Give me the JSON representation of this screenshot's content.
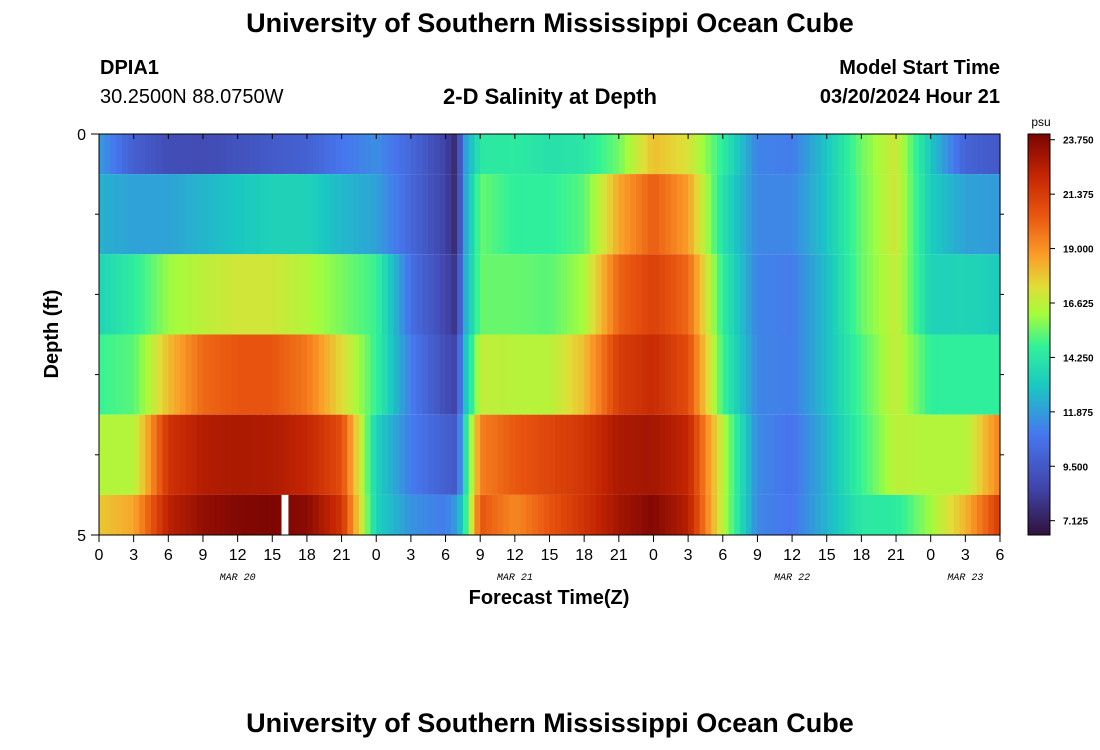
{
  "header": {
    "title": "University of Southern Mississippi Ocean Cube",
    "station_id": "DPIA1",
    "coordinates": "30.2500N  88.0750W",
    "chart_title": "2-D Salinity at Depth",
    "model_start_label": "Model Start Time",
    "model_start_value": "03/20/2024 Hour 21"
  },
  "footer": {
    "title": "University of Southern Mississippi Ocean Cube"
  },
  "chart_data": {
    "type": "heatmap",
    "title": "2-D Salinity at Depth",
    "xlabel": "Forecast Time(Z)",
    "ylabel": "Depth (ft)",
    "unit": "psu",
    "x_range_hours": [
      0,
      78
    ],
    "x_origin": "03/20/2024 00Z",
    "x_ticks": [
      {
        "hour": 0,
        "label": "0"
      },
      {
        "hour": 3,
        "label": "3"
      },
      {
        "hour": 6,
        "label": "6"
      },
      {
        "hour": 9,
        "label": "9"
      },
      {
        "hour": 12,
        "label": "12"
      },
      {
        "hour": 15,
        "label": "15"
      },
      {
        "hour": 18,
        "label": "18"
      },
      {
        "hour": 21,
        "label": "21"
      },
      {
        "hour": 24,
        "label": "0"
      },
      {
        "hour": 27,
        "label": "3"
      },
      {
        "hour": 30,
        "label": "6"
      },
      {
        "hour": 33,
        "label": "9"
      },
      {
        "hour": 36,
        "label": "12"
      },
      {
        "hour": 39,
        "label": "15"
      },
      {
        "hour": 42,
        "label": "18"
      },
      {
        "hour": 45,
        "label": "21"
      },
      {
        "hour": 48,
        "label": "0"
      },
      {
        "hour": 51,
        "label": "3"
      },
      {
        "hour": 54,
        "label": "6"
      },
      {
        "hour": 57,
        "label": "9"
      },
      {
        "hour": 60,
        "label": "12"
      },
      {
        "hour": 63,
        "label": "15"
      },
      {
        "hour": 66,
        "label": "18"
      },
      {
        "hour": 69,
        "label": "21"
      },
      {
        "hour": 72,
        "label": "0"
      },
      {
        "hour": 75,
        "label": "3"
      },
      {
        "hour": 78,
        "label": "6"
      }
    ],
    "date_labels": [
      {
        "hour": 12,
        "label": "MAR 20"
      },
      {
        "hour": 36,
        "label": "MAR 21"
      },
      {
        "hour": 60,
        "label": "MAR 22"
      },
      {
        "hour": 75,
        "label": "MAR 23"
      }
    ],
    "y_range_ft": [
      0,
      5
    ],
    "y_ticks": [
      {
        "ft": 0,
        "label": "0"
      },
      {
        "ft": 5,
        "label": "5"
      }
    ],
    "y_minor_ticks": [
      1,
      2,
      3,
      4
    ],
    "depth_layers_ft": [
      [
        0,
        0.5
      ],
      [
        0.5,
        1.5
      ],
      [
        1.5,
        2.5
      ],
      [
        2.5,
        3.5
      ],
      [
        3.5,
        4.5
      ],
      [
        4.5,
        5.0
      ]
    ],
    "key_hours": [
      0,
      3,
      6,
      9,
      12,
      15,
      18,
      21,
      24,
      27,
      30,
      31,
      31.5,
      33,
      36,
      39,
      42,
      45,
      48,
      51,
      54,
      57,
      60,
      63,
      66,
      69,
      72,
      75,
      78
    ],
    "salinity_psu": [
      [
        11.8,
        9.8,
        9.0,
        8.9,
        9.2,
        9.6,
        9.9,
        10.8,
        11.5,
        10.2,
        8.5,
        7.3,
        11.5,
        14.3,
        14.4,
        14.0,
        14.2,
        15.5,
        18.0,
        17.2,
        14.5,
        11.2,
        11.0,
        13.0,
        15.5,
        17.0,
        13.0,
        10.0,
        9.5
      ],
      [
        12.4,
        12.0,
        12.0,
        12.5,
        13.0,
        13.4,
        13.4,
        12.6,
        12.0,
        10.2,
        8.5,
        7.3,
        11.5,
        15.4,
        14.6,
        14.6,
        15.2,
        18.5,
        20.3,
        18.7,
        14.0,
        11.3,
        11.3,
        13.0,
        15.4,
        17.0,
        13.2,
        12.0,
        11.8
      ],
      [
        13.5,
        14.5,
        16.0,
        16.6,
        17.0,
        17.0,
        16.4,
        15.6,
        14.8,
        10.5,
        8.7,
        7.8,
        11.8,
        15.4,
        15.4,
        15.2,
        16.2,
        20.1,
        21.2,
        20.0,
        14.5,
        11.2,
        11.0,
        12.8,
        15.4,
        16.8,
        13.4,
        13.5,
        13.2
      ],
      [
        14.8,
        15.2,
        18.0,
        20.0,
        20.5,
        20.5,
        19.6,
        17.4,
        14.7,
        11.0,
        9.0,
        8.5,
        12.3,
        16.7,
        16.5,
        16.5,
        18.0,
        21.3,
        22.0,
        20.8,
        14.8,
        11.3,
        11.0,
        12.8,
        15.0,
        16.8,
        14.6,
        14.6,
        14.6
      ],
      [
        16.4,
        16.4,
        21.7,
        22.6,
        22.8,
        22.7,
        22.2,
        20.8,
        13.4,
        11.0,
        9.8,
        9.5,
        13.0,
        19.4,
        20.4,
        21.0,
        21.6,
        22.8,
        23.0,
        22.2,
        16.5,
        11.4,
        10.7,
        12.5,
        14.8,
        16.6,
        16.4,
        16.4,
        19.4
      ],
      [
        17.8,
        18.5,
        22.4,
        23.4,
        23.8,
        23.9,
        23.6,
        21.7,
        13.4,
        11.6,
        11.0,
        12.0,
        13.5,
        20.5,
        19.2,
        20.5,
        21.7,
        23.0,
        23.8,
        22.5,
        16.5,
        11.3,
        10.8,
        12.5,
        14.3,
        14.4,
        16.1,
        18.2,
        21.4
      ]
    ],
    "missing_marks": [
      {
        "layer": 5,
        "hour_start": 15.8,
        "hour_end": 16.4
      }
    ],
    "colorbar": {
      "label": "psu",
      "min": 6.5,
      "max": 24.0,
      "tick_values": [
        7.125,
        9.5,
        11.875,
        14.25,
        16.625,
        19.0,
        21.375,
        23.75
      ],
      "tick_labels": [
        "7.125",
        "9.500",
        "11.875",
        "14.250",
        "16.625",
        "19.000",
        "21.375",
        "23.750"
      ]
    }
  }
}
